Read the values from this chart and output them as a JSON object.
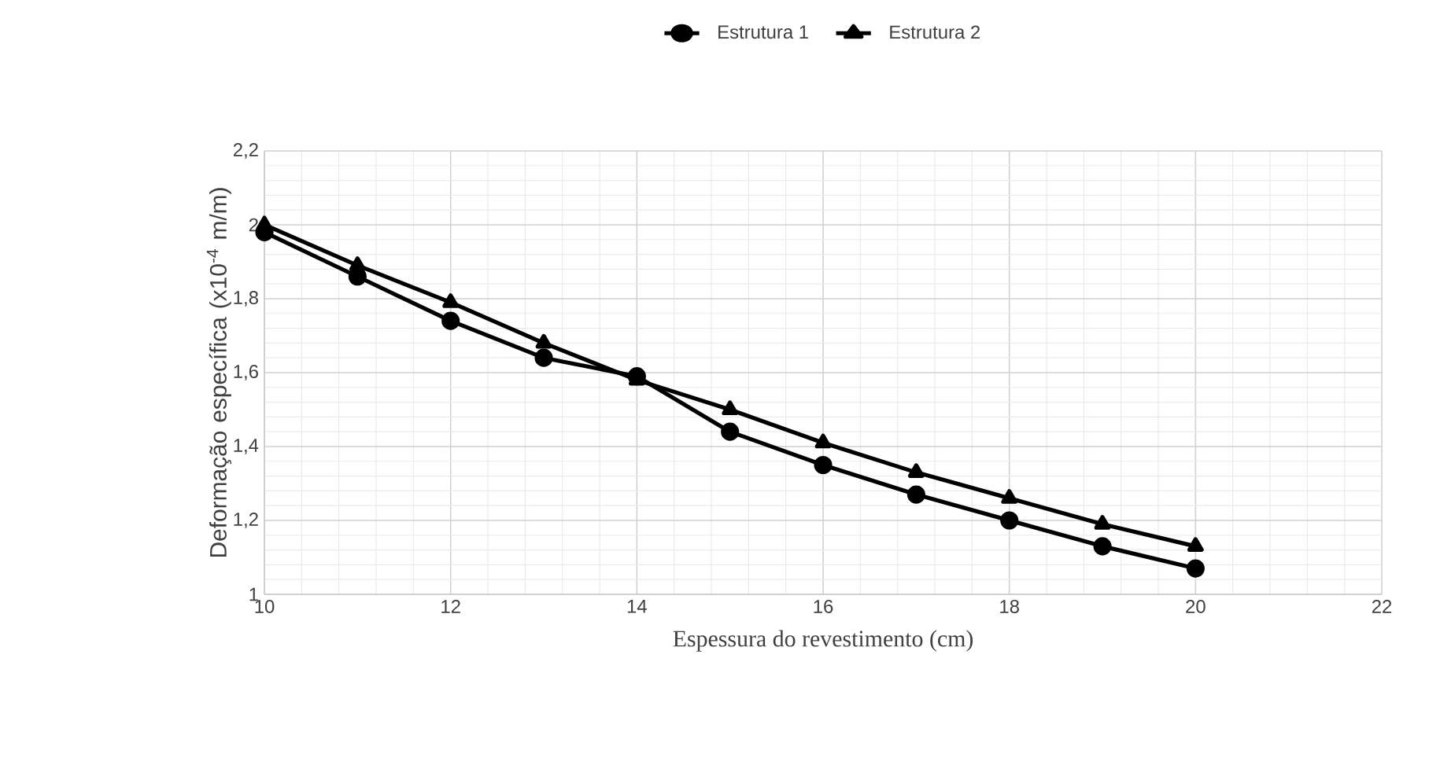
{
  "chart_data": {
    "type": "line",
    "xlabel": "Espessura do revestimento (cm)",
    "ylabel": "Deformação específica (x10$^{-4}$ m/m)",
    "x": [
      10,
      11,
      12,
      13,
      14,
      15,
      16,
      17,
      18,
      19,
      20
    ],
    "series": [
      {
        "name": "Estrutura 1",
        "color": "#000000",
        "marker": "circle",
        "values": [
          1.98,
          1.86,
          1.74,
          1.64,
          1.59,
          1.44,
          1.35,
          1.27,
          1.2,
          1.13,
          1.07
        ]
      },
      {
        "name": "Estrutura 2",
        "color": "#000000",
        "marker": "triangle",
        "values": [
          2.0,
          1.89,
          1.79,
          1.68,
          1.58,
          1.5,
          1.41,
          1.33,
          1.26,
          1.19,
          1.13
        ]
      }
    ],
    "xlim": [
      10,
      22
    ],
    "xticks": [
      10,
      12,
      14,
      16,
      18,
      20,
      22
    ],
    "ylim": [
      1,
      2.2
    ],
    "yticks": [
      1,
      {
        "value": 1.2,
        "label": "1,2"
      },
      {
        "value": 1.4,
        "label": "1,4"
      },
      {
        "value": 1.6,
        "label": "1,6"
      },
      {
        "value": 1.8,
        "label": "1,8"
      },
      2,
      {
        "value": 2.2,
        "label": "2,2"
      }
    ],
    "grid": true,
    "legend": "top",
    "line_style": "solid"
  }
}
